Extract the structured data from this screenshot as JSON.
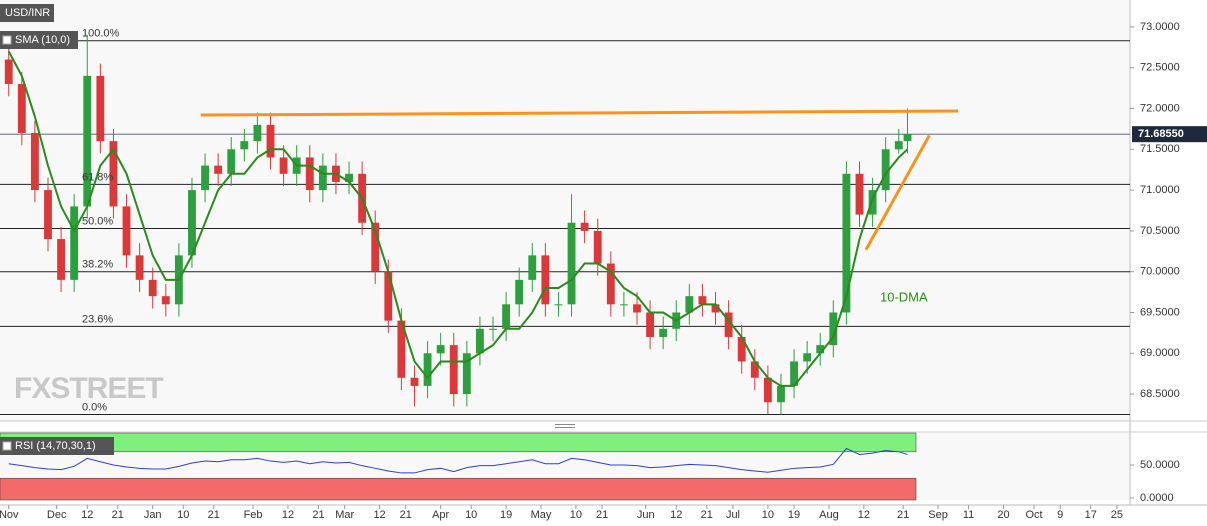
{
  "chart_data": {
    "type": "candlestick",
    "title": "USD/INR",
    "indicator": "SMA (10,0)",
    "watermark": "FXSTREET",
    "up_color": "#2e9e3e",
    "down_color": "#d83a3a",
    "x": [
      0,
      3,
      6,
      9,
      12,
      15,
      18,
      21,
      24,
      27,
      30,
      33,
      36,
      39,
      42,
      45,
      48,
      51,
      54,
      57,
      60,
      63,
      66,
      69,
      72,
      75,
      78,
      81,
      84,
      87,
      90,
      93,
      96,
      99,
      102,
      105,
      108,
      111,
      114,
      117,
      120,
      123,
      126,
      129,
      132,
      135,
      138,
      141,
      144,
      147,
      150,
      153,
      156,
      159,
      162,
      165,
      168,
      171,
      174,
      177,
      180,
      183,
      186,
      189,
      192,
      195,
      198,
      201,
      204,
      206
    ],
    "open": [
      72.6,
      72.3,
      71.7,
      71.0,
      70.4,
      69.9,
      70.8,
      72.4,
      71.6,
      70.8,
      70.2,
      69.9,
      69.7,
      69.6,
      70.2,
      71.0,
      71.3,
      71.2,
      71.5,
      71.6,
      71.8,
      71.4,
      71.2,
      71.4,
      71.0,
      71.3,
      71.1,
      71.2,
      70.6,
      70.0,
      69.4,
      68.7,
      68.6,
      69.0,
      69.1,
      68.5,
      69.0,
      69.3,
      69.3,
      69.6,
      69.9,
      70.2,
      69.6,
      69.6,
      70.6,
      70.5,
      70.1,
      69.6,
      69.6,
      69.5,
      69.2,
      69.3,
      69.5,
      69.7,
      69.6,
      69.5,
      69.2,
      68.9,
      68.7,
      68.4,
      68.6,
      68.9,
      69.0,
      69.1,
      69.5,
      71.2,
      70.7,
      71.0,
      71.5,
      71.6
    ],
    "high": [
      72.75,
      72.45,
      71.85,
      71.15,
      70.55,
      70.95,
      72.9,
      72.55,
      71.75,
      70.95,
      70.35,
      70.05,
      69.85,
      70.35,
      71.15,
      71.45,
      71.45,
      71.65,
      71.75,
      71.95,
      71.95,
      71.55,
      71.55,
      71.55,
      71.45,
      71.45,
      71.35,
      71.35,
      70.75,
      70.15,
      69.55,
      68.85,
      69.15,
      69.25,
      69.25,
      69.15,
      69.45,
      69.45,
      69.75,
      70.05,
      70.35,
      70.35,
      69.75,
      70.95,
      70.75,
      70.65,
      70.25,
      69.75,
      69.75,
      69.65,
      69.45,
      69.65,
      69.85,
      69.85,
      69.75,
      69.65,
      69.35,
      69.05,
      68.85,
      68.75,
      69.05,
      69.15,
      69.25,
      69.65,
      71.35,
      71.35,
      71.15,
      71.65,
      71.75,
      72.0
    ],
    "low": [
      72.15,
      71.55,
      70.85,
      70.25,
      69.75,
      69.75,
      70.65,
      71.45,
      70.65,
      70.05,
      69.75,
      69.55,
      69.45,
      69.45,
      70.05,
      70.85,
      71.05,
      71.05,
      71.35,
      71.45,
      71.25,
      71.05,
      71.05,
      70.85,
      70.85,
      70.95,
      70.95,
      70.45,
      69.85,
      69.25,
      68.55,
      68.35,
      68.45,
      68.85,
      68.35,
      68.35,
      68.85,
      69.15,
      69.15,
      69.45,
      69.75,
      69.45,
      69.45,
      69.45,
      70.35,
      69.95,
      69.45,
      69.45,
      69.35,
      69.05,
      69.05,
      69.15,
      69.35,
      69.45,
      69.35,
      69.05,
      68.75,
      68.55,
      68.25,
      68.25,
      68.45,
      68.75,
      68.85,
      68.95,
      69.35,
      70.55,
      70.55,
      70.85,
      71.45,
      71.45
    ],
    "close": [
      72.3,
      71.7,
      71.0,
      70.4,
      69.9,
      70.8,
      72.4,
      71.6,
      70.8,
      70.2,
      69.9,
      69.7,
      69.6,
      70.2,
      71.0,
      71.3,
      71.2,
      71.5,
      71.6,
      71.8,
      71.4,
      71.2,
      71.4,
      71.0,
      71.3,
      71.1,
      71.2,
      70.6,
      70.0,
      69.4,
      68.7,
      68.6,
      69.0,
      69.1,
      68.5,
      69.0,
      69.3,
      69.3,
      69.6,
      69.9,
      70.2,
      69.6,
      69.6,
      70.6,
      70.5,
      70.1,
      69.6,
      69.6,
      69.5,
      69.2,
      69.3,
      69.5,
      69.7,
      69.6,
      69.5,
      69.2,
      68.9,
      68.7,
      68.4,
      68.6,
      68.9,
      69.0,
      69.1,
      69.5,
      71.2,
      70.7,
      71.0,
      71.5,
      71.6,
      71.6855
    ],
    "sma": {
      "color": "#2a8a1e",
      "values": [
        72.7,
        72.4,
        71.9,
        71.3,
        70.8,
        70.5,
        70.8,
        71.3,
        71.5,
        71.2,
        70.7,
        70.2,
        69.9,
        69.9,
        70.2,
        70.6,
        71.0,
        71.2,
        71.2,
        71.4,
        71.5,
        71.5,
        71.3,
        71.3,
        71.2,
        71.2,
        71.1,
        70.9,
        70.5,
        70.0,
        69.4,
        68.9,
        68.7,
        68.9,
        68.9,
        68.9,
        69.0,
        69.1,
        69.3,
        69.3,
        69.5,
        69.8,
        69.8,
        69.9,
        70.1,
        70.1,
        70.0,
        69.8,
        69.7,
        69.5,
        69.5,
        69.4,
        69.5,
        69.6,
        69.6,
        69.4,
        69.2,
        68.9,
        68.7,
        68.6,
        68.6,
        68.8,
        69.0,
        69.2,
        69.7,
        70.4,
        70.9,
        71.2,
        71.4,
        71.5
      ]
    },
    "xlim": [
      -2,
      257
    ],
    "xticks": [
      {
        "value": 0,
        "label": "Nov"
      },
      {
        "value": 11,
        "label": "Dec"
      },
      {
        "value": 18,
        "label": "12"
      },
      {
        "value": 25,
        "label": "21"
      },
      {
        "value": 33,
        "label": "Jan"
      },
      {
        "value": 40,
        "label": "10"
      },
      {
        "value": 47,
        "label": "21"
      },
      {
        "value": 56,
        "label": "Feb"
      },
      {
        "value": 64,
        "label": "12"
      },
      {
        "value": 71,
        "label": "21"
      },
      {
        "value": 77,
        "label": "Mar"
      },
      {
        "value": 85,
        "label": "12"
      },
      {
        "value": 91,
        "label": "21"
      },
      {
        "value": 99,
        "label": "Apr"
      },
      {
        "value": 106,
        "label": "10"
      },
      {
        "value": 114,
        "label": "19"
      },
      {
        "value": 122,
        "label": "May"
      },
      {
        "value": 130,
        "label": "10"
      },
      {
        "value": 136,
        "label": "21"
      },
      {
        "value": 146,
        "label": "Jun"
      },
      {
        "value": 153,
        "label": "12"
      },
      {
        "value": 160,
        "label": "21"
      },
      {
        "value": 166,
        "label": "Jul"
      },
      {
        "value": 174,
        "label": "10"
      },
      {
        "value": 180,
        "label": "19"
      },
      {
        "value": 188,
        "label": "Aug"
      },
      {
        "value": 196,
        "label": "12"
      },
      {
        "value": 205,
        "label": "21"
      },
      {
        "value": 213,
        "label": "Sep"
      },
      {
        "value": 220,
        "label": "11"
      },
      {
        "value": 228,
        "label": "20"
      },
      {
        "value": 235,
        "label": "Oct"
      },
      {
        "value": 241,
        "label": "9"
      },
      {
        "value": 248,
        "label": "17"
      },
      {
        "value": 254,
        "label": "25"
      }
    ],
    "ylim": [
      68.17,
      73.33
    ],
    "yticks": [
      {
        "value": 73.0,
        "label": "73.0000"
      },
      {
        "value": 72.5,
        "label": "72.5000"
      },
      {
        "value": 72.0,
        "label": "72.0000"
      },
      {
        "value": 71.5,
        "label": "71.5000"
      },
      {
        "value": 71.0,
        "label": "71.0000"
      },
      {
        "value": 70.5,
        "label": "70.5000"
      },
      {
        "value": 70.0,
        "label": "70.0000"
      },
      {
        "value": 69.5,
        "label": "69.5000"
      },
      {
        "value": 69.0,
        "label": "69.0000"
      },
      {
        "value": 68.5,
        "label": "68.5000"
      }
    ],
    "last_price": {
      "value": 71.6855,
      "label": "71.68550"
    },
    "fib_levels": [
      {
        "label": "100.0%",
        "value": 72.83
      },
      {
        "label": "61.8%",
        "value": 71.07
      },
      {
        "label": "50.0%",
        "value": 70.53
      },
      {
        "label": "38.2%",
        "value": 70.0
      },
      {
        "label": "23.6%",
        "value": 69.33
      },
      {
        "label": "0.0%",
        "value": 68.25
      }
    ],
    "trend_lines": [
      {
        "color": "#f7931e",
        "x": [
          44,
          217.6
        ],
        "y": [
          71.92,
          71.97
        ]
      },
      {
        "color": "#f7931e",
        "x": [
          196.5,
          211
        ],
        "y": [
          70.27,
          71.67
        ]
      }
    ],
    "annotation": {
      "text": "10-DMA",
      "color": "#2a8a1e"
    },
    "rsi": {
      "name": "RSI (14,70,30,1)",
      "color": "#2b3fd6",
      "overbought": 70,
      "oversold": 30,
      "values": [
        52,
        49,
        46,
        44,
        43,
        48,
        60,
        55,
        50,
        47,
        45,
        44,
        44,
        48,
        53,
        56,
        55,
        58,
        58,
        60,
        56,
        54,
        56,
        52,
        55,
        53,
        54,
        49,
        45,
        41,
        38,
        38,
        43,
        45,
        40,
        46,
        49,
        49,
        52,
        55,
        58,
        52,
        52,
        60,
        58,
        54,
        50,
        50,
        49,
        46,
        47,
        49,
        51,
        50,
        49,
        46,
        43,
        41,
        39,
        42,
        45,
        46,
        47,
        51,
        75,
        66,
        68,
        72,
        70,
        66
      ],
      "ylim": [
        -3,
        98.5
      ],
      "yticks": [
        {
          "value": 50,
          "label": "50.0000"
        },
        {
          "value": 0,
          "label": "0.0000"
        }
      ]
    }
  }
}
